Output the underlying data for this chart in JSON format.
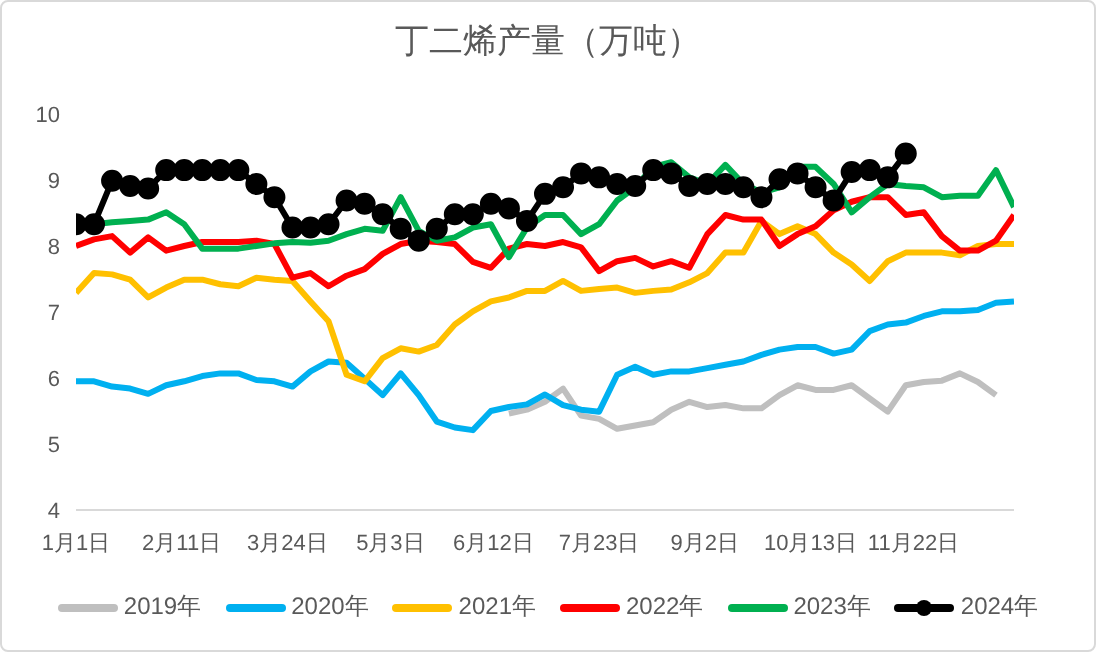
{
  "chart_data": {
    "type": "line",
    "title": "丁二烯产量（万吨）",
    "x": [
      "--01-01",
      "--01-08",
      "--01-15",
      "--01-22",
      "--01-29",
      "--02-05",
      "--02-12",
      "--02-19",
      "--02-26",
      "--03-05",
      "--03-12",
      "--03-19",
      "--03-26",
      "--04-02",
      "--04-09",
      "--04-16",
      "--04-23",
      "--04-30",
      "--05-07",
      "--05-14",
      "--05-21",
      "--05-28",
      "--06-04",
      "--06-11",
      "--06-18",
      "--06-25",
      "--07-02",
      "--07-09",
      "--07-16",
      "--07-23",
      "--07-30",
      "--08-06",
      "--08-13",
      "--08-20",
      "--08-27",
      "--09-03",
      "--09-10",
      "--09-17",
      "--09-24",
      "--10-01",
      "--10-08",
      "--10-15",
      "--10-22",
      "--10-29",
      "--11-05",
      "--11-12",
      "--11-19",
      "--11-26",
      "--12-03",
      "--12-10",
      "--12-17",
      "--12-24",
      "--12-31"
    ],
    "xlim": [
      "--01-01",
      "--12-31"
    ],
    "xticks": [
      {
        "value": "--01-01",
        "label": "1月1日"
      },
      {
        "value": "--02-11",
        "label": "2月11日"
      },
      {
        "value": "--03-24",
        "label": "3月24日"
      },
      {
        "value": "--05-03",
        "label": "5月3日"
      },
      {
        "value": "--06-12",
        "label": "6月12日"
      },
      {
        "value": "--07-23",
        "label": "7月23日"
      },
      {
        "value": "--09-02",
        "label": "9月2日"
      },
      {
        "value": "--10-13",
        "label": "10月13日"
      },
      {
        "value": "--11-22",
        "label": "11月22日"
      }
    ],
    "ylim": [
      4,
      10
    ],
    "yticks": [
      4,
      5,
      6,
      7,
      8,
      9,
      10
    ],
    "grid": false,
    "legend": "bottom",
    "line_style": "solid",
    "series": [
      {
        "name": "2019年",
        "color": "#bfbfbf",
        "values": [
          null,
          null,
          null,
          null,
          null,
          null,
          null,
          null,
          null,
          null,
          null,
          null,
          null,
          null,
          null,
          null,
          null,
          null,
          null,
          null,
          null,
          null,
          null,
          null,
          5.46,
          5.52,
          5.64,
          5.84,
          5.43,
          5.38,
          5.23,
          5.28,
          5.33,
          5.52,
          5.64,
          5.56,
          5.59,
          5.54,
          5.54,
          5.74,
          5.89,
          5.82,
          5.82,
          5.89,
          5.69,
          5.49,
          5.89,
          5.94,
          5.96,
          6.07,
          5.94,
          5.74,
          null
        ]
      },
      {
        "name": "2020年",
        "color": "#00b0f0",
        "values": [
          5.95,
          5.95,
          5.87,
          5.84,
          5.76,
          5.89,
          5.95,
          6.03,
          6.07,
          6.07,
          5.97,
          5.95,
          5.87,
          6.1,
          6.25,
          6.23,
          5.99,
          5.74,
          6.07,
          5.74,
          5.34,
          5.25,
          5.21,
          5.5,
          5.56,
          5.6,
          5.75,
          5.59,
          5.52,
          5.49,
          6.05,
          6.17,
          6.05,
          6.1,
          6.1,
          6.15,
          6.2,
          6.25,
          6.35,
          6.43,
          6.47,
          6.47,
          6.37,
          6.43,
          6.71,
          6.81,
          6.84,
          6.94,
          7.01,
          7.01,
          7.03,
          7.14,
          7.16
        ]
      },
      {
        "name": "2021年",
        "color": "#ffc000",
        "values": [
          7.29,
          7.59,
          7.57,
          7.49,
          7.22,
          7.37,
          7.49,
          7.49,
          7.42,
          7.39,
          7.52,
          7.49,
          7.47,
          7.16,
          6.86,
          6.05,
          5.95,
          6.3,
          6.45,
          6.4,
          6.5,
          6.81,
          7.01,
          7.16,
          7.22,
          7.32,
          7.32,
          7.47,
          7.32,
          7.35,
          7.37,
          7.29,
          7.32,
          7.34,
          7.45,
          7.59,
          7.9,
          7.9,
          8.38,
          8.18,
          8.3,
          8.18,
          7.9,
          7.72,
          7.47,
          7.77,
          7.9,
          7.9,
          7.9,
          7.86,
          8.0,
          8.03,
          8.03
        ]
      },
      {
        "name": "2022年",
        "color": "#ff0000",
        "values": [
          8.0,
          8.1,
          8.15,
          7.9,
          8.13,
          7.93,
          8.0,
          8.06,
          8.06,
          8.06,
          8.08,
          8.03,
          7.52,
          7.59,
          7.39,
          7.55,
          7.65,
          7.88,
          8.03,
          8.08,
          8.06,
          8.03,
          7.76,
          7.67,
          7.96,
          8.03,
          8.0,
          8.06,
          7.98,
          7.62,
          7.77,
          7.82,
          7.69,
          7.77,
          7.67,
          8.18,
          8.47,
          8.4,
          8.4,
          8.0,
          8.18,
          8.3,
          8.54,
          8.67,
          8.74,
          8.74,
          8.47,
          8.51,
          8.15,
          7.93,
          7.93,
          8.08,
          8.47
        ]
      },
      {
        "name": "2023年",
        "color": "#00b050",
        "values": [
          8.35,
          8.33,
          8.36,
          8.38,
          8.4,
          8.51,
          8.33,
          7.96,
          7.96,
          7.96,
          8.0,
          8.04,
          8.06,
          8.05,
          8.08,
          8.18,
          8.26,
          8.23,
          8.74,
          8.23,
          8.08,
          8.13,
          8.28,
          8.33,
          7.83,
          8.28,
          8.47,
          8.47,
          8.18,
          8.33,
          8.69,
          8.89,
          9.2,
          9.27,
          9.04,
          8.94,
          9.23,
          8.94,
          8.81,
          8.89,
          9.2,
          9.2,
          8.94,
          8.51,
          8.74,
          8.94,
          8.91,
          8.89,
          8.74,
          8.76,
          8.76,
          9.15,
          8.59
        ]
      },
      {
        "name": "2024年",
        "color": "#000000",
        "marker": "circle",
        "values": [
          8.33,
          8.33,
          8.99,
          8.91,
          8.87,
          9.15,
          9.15,
          9.15,
          9.15,
          9.15,
          8.94,
          8.74,
          8.28,
          8.28,
          8.33,
          8.69,
          8.64,
          8.48,
          8.26,
          8.08,
          8.26,
          8.48,
          8.48,
          8.64,
          8.57,
          8.38,
          8.79,
          8.89,
          9.1,
          9.04,
          8.94,
          8.91,
          9.15,
          9.1,
          8.91,
          8.94,
          8.94,
          8.89,
          8.74,
          9.01,
          9.1,
          8.89,
          8.69,
          9.12,
          9.15,
          9.04,
          9.4,
          null,
          null,
          null,
          null,
          null,
          null
        ]
      }
    ]
  }
}
